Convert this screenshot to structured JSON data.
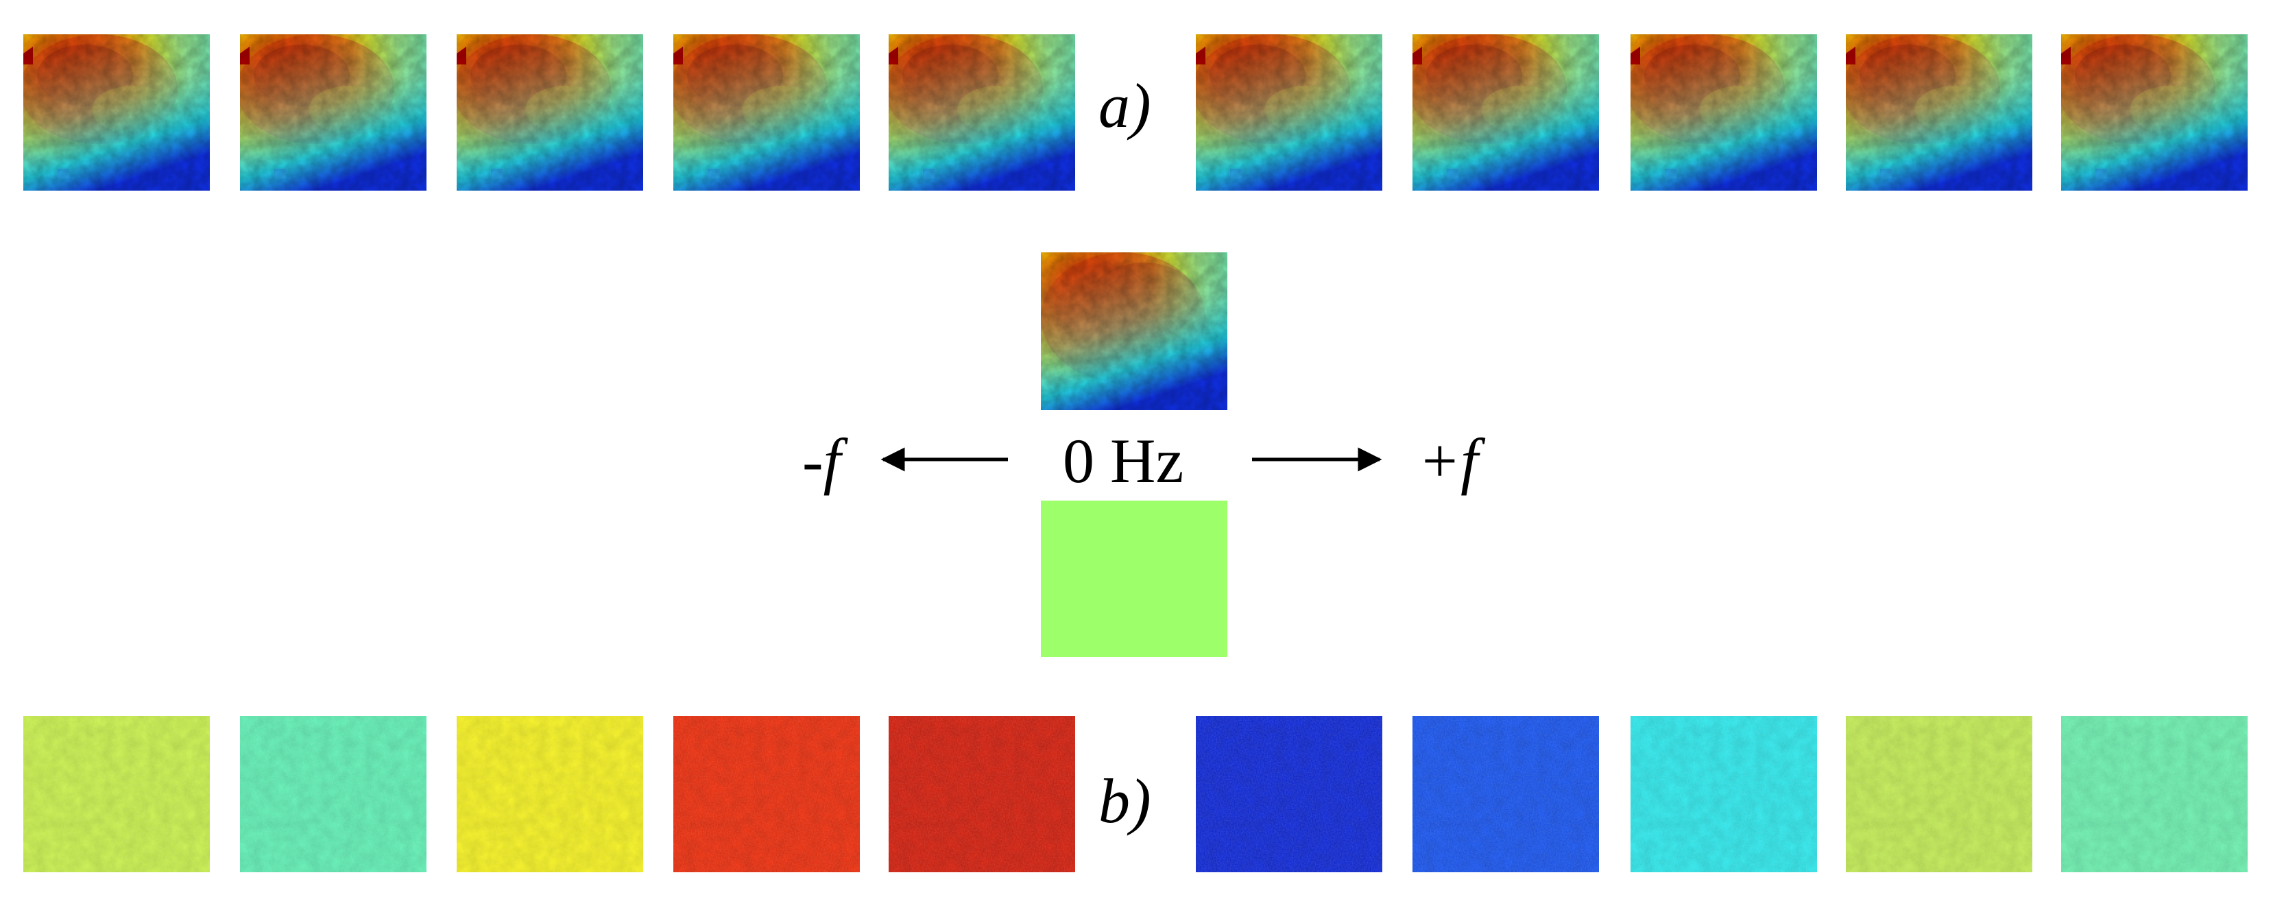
{
  "figure": {
    "row_a_label": "a)",
    "row_b_label": "b)",
    "center_label": "0 Hz",
    "neg_label": "-f",
    "pos_label": "+f"
  },
  "colors": {
    "jet_dark_red": "#a00000",
    "jet_red": "#e81b00",
    "jet_orange": "#f57a00",
    "jet_yellow": "#f3f300",
    "jet_light_green": "#9dff6a",
    "jet_cyan": "#18f3f3",
    "jet_blue": "#0a3ff0",
    "jet_dark_blue": "#0018c8",
    "arrow": "#000000"
  },
  "row_b_tiles": [
    {
      "fill": "#c8f24a"
    },
    {
      "fill": "#5ef0b4"
    },
    {
      "fill": "#f6f21c"
    },
    {
      "fill": "#ee2a08"
    },
    {
      "fill": "#d41a08"
    },
    {
      "fill": "#0a24d8"
    },
    {
      "fill": "#1452f0"
    },
    {
      "fill": "#2ae8ec"
    },
    {
      "fill": "#c2ec52"
    },
    {
      "fill": "#6af0ae"
    }
  ]
}
